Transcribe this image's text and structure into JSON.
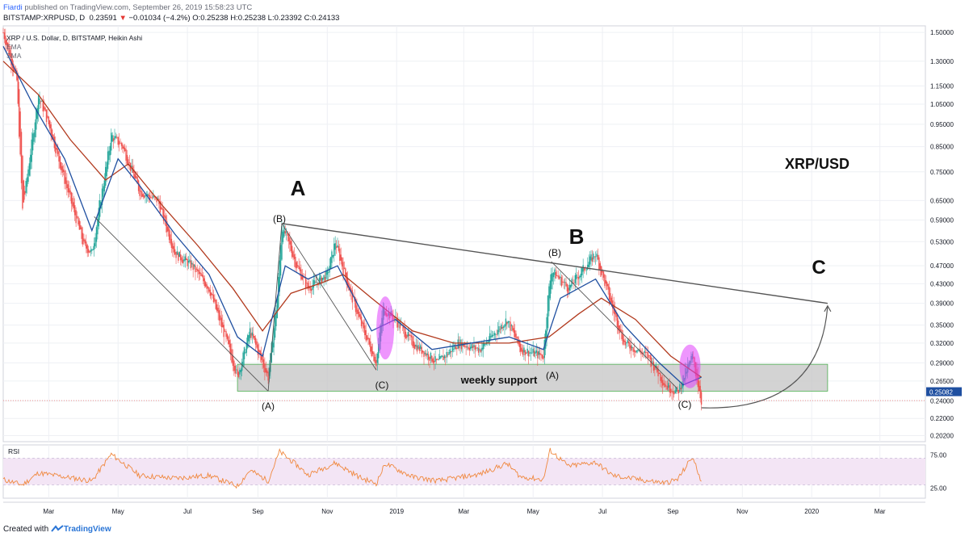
{
  "header": {
    "author": "Fiardi",
    "published_text": "published on TradingView.com, September 26, 2019 15:58:23 UTC",
    "symbol": "BITSTAMP:XRPUSD, D",
    "price": "0.23591",
    "change_arrow": "▼",
    "change": "−0.01034 (−4.2%)",
    "ohlc": "O:0.25238 H:0.25238 L:0.23392 C:0.24133"
  },
  "legend": {
    "title": "XRP / U.S. Dollar, D, BITSTAMP, Heikin Ashi",
    "line1": "EMA",
    "line2": "SMA"
  },
  "footer": {
    "created_with": "Created with",
    "brand": "TradingView"
  },
  "colors": {
    "up_candle": "#26a69a",
    "down_candle": "#ef5350",
    "ema": "#1f4fa0",
    "sma": "#b23a1e",
    "trend": "#555555",
    "support_fill": "#c8c8c8",
    "support_border": "#4caf50",
    "highlight": "#e040fb",
    "rsi_line": "#f0883e",
    "rsi_band": "#f3e5f5",
    "price_label_bg": "#1f4fa0"
  },
  "chart_data": [
    {
      "type": "candlestick",
      "title": "XRP / U.S. Dollar, D, BITSTAMP, Heikin Ashi",
      "y_scale": "log",
      "y_ticks": [
        "1.50000",
        "1.30000",
        "1.15000",
        "1.05000",
        "0.95000",
        "0.85000",
        "0.75000",
        "0.65000",
        "0.59000",
        "0.53000",
        "0.47000",
        "0.43000",
        "0.39000",
        "0.35000",
        "0.32000",
        "0.29000",
        "0.26500",
        "0.24000",
        "0.22000",
        "0.20200"
      ],
      "x_ticks": [
        "Mar",
        "May",
        "Jul",
        "Sep",
        "Nov",
        "2019",
        "Mar",
        "May",
        "Jul",
        "Sep",
        "Nov",
        "2020",
        "Mar"
      ],
      "current_price_label": "0.25082",
      "annotations": {
        "big_labels": [
          "A",
          "B",
          "C"
        ],
        "wave_labels": [
          "(B)",
          "(A)",
          "(C)",
          "(B)",
          "(A)",
          "(C)"
        ],
        "instrument_label": "XRP/USD",
        "zone_label": "weekly support"
      },
      "price_path": [
        [
          "2018-01-20",
          1.5
        ],
        [
          "2018-02-01",
          1.18
        ],
        [
          "2018-02-06",
          0.62
        ],
        [
          "2018-02-20",
          1.1
        ],
        [
          "2018-03-01",
          0.95
        ],
        [
          "2018-03-15",
          0.72
        ],
        [
          "2018-04-01",
          0.52
        ],
        [
          "2018-04-08",
          0.5
        ],
        [
          "2018-04-25",
          0.9
        ],
        [
          "2018-05-05",
          0.85
        ],
        [
          "2018-05-20",
          0.68
        ],
        [
          "2018-06-05",
          0.65
        ],
        [
          "2018-06-20",
          0.5
        ],
        [
          "2018-07-05",
          0.47
        ],
        [
          "2018-07-20",
          0.42
        ],
        [
          "2018-08-05",
          0.32
        ],
        [
          "2018-08-14",
          0.27
        ],
        [
          "2018-08-25",
          0.34
        ],
        [
          "2018-09-05",
          0.29
        ],
        [
          "2018-09-10",
          0.27
        ],
        [
          "2018-09-18",
          0.4
        ],
        [
          "2018-09-22",
          0.58
        ],
        [
          "2018-10-05",
          0.47
        ],
        [
          "2018-10-15",
          0.42
        ],
        [
          "2018-11-01",
          0.45
        ],
        [
          "2018-11-08",
          0.53
        ],
        [
          "2018-11-20",
          0.42
        ],
        [
          "2018-12-01",
          0.35
        ],
        [
          "2018-12-14",
          0.29
        ],
        [
          "2018-12-20",
          0.38
        ],
        [
          "2018-12-31",
          0.36
        ],
        [
          "2019-01-15",
          0.32
        ],
        [
          "2019-02-06",
          0.29
        ],
        [
          "2019-02-24",
          0.32
        ],
        [
          "2019-03-15",
          0.31
        ],
        [
          "2019-04-08",
          0.36
        ],
        [
          "2019-04-20",
          0.31
        ],
        [
          "2019-05-10",
          0.3
        ],
        [
          "2019-05-14",
          0.4
        ],
        [
          "2019-05-17",
          0.46
        ],
        [
          "2019-06-01",
          0.42
        ],
        [
          "2019-06-25",
          0.5
        ],
        [
          "2019-07-10",
          0.38
        ],
        [
          "2019-07-20",
          0.32
        ],
        [
          "2019-08-10",
          0.3
        ],
        [
          "2019-08-25",
          0.26
        ],
        [
          "2019-09-05",
          0.25
        ],
        [
          "2019-09-18",
          0.3
        ],
        [
          "2019-09-26",
          0.24
        ]
      ],
      "ema_path": [
        [
          "2018-01-20",
          1.4
        ],
        [
          "2018-02-15",
          1.05
        ],
        [
          "2018-03-15",
          0.8
        ],
        [
          "2018-04-08",
          0.56
        ],
        [
          "2018-05-01",
          0.8
        ],
        [
          "2018-05-20",
          0.7
        ],
        [
          "2018-06-20",
          0.55
        ],
        [
          "2018-07-20",
          0.45
        ],
        [
          "2018-08-14",
          0.33
        ],
        [
          "2018-09-05",
          0.3
        ],
        [
          "2018-09-25",
          0.47
        ],
        [
          "2018-10-15",
          0.44
        ],
        [
          "2018-11-10",
          0.47
        ],
        [
          "2018-12-10",
          0.34
        ],
        [
          "2018-12-31",
          0.36
        ],
        [
          "2019-02-01",
          0.31
        ],
        [
          "2019-04-10",
          0.33
        ],
        [
          "2019-05-10",
          0.31
        ],
        [
          "2019-05-25",
          0.4
        ],
        [
          "2019-06-25",
          0.44
        ],
        [
          "2019-07-20",
          0.35
        ],
        [
          "2019-08-20",
          0.29
        ],
        [
          "2019-09-10",
          0.26
        ],
        [
          "2019-09-26",
          0.27
        ]
      ],
      "sma_path": [
        [
          "2018-01-20",
          1.3
        ],
        [
          "2018-02-20",
          1.1
        ],
        [
          "2018-03-20",
          0.88
        ],
        [
          "2018-04-20",
          0.72
        ],
        [
          "2018-05-10",
          0.78
        ],
        [
          "2018-06-10",
          0.63
        ],
        [
          "2018-07-10",
          0.52
        ],
        [
          "2018-08-10",
          0.42
        ],
        [
          "2018-09-05",
          0.34
        ],
        [
          "2018-09-30",
          0.41
        ],
        [
          "2018-10-25",
          0.43
        ],
        [
          "2018-11-15",
          0.45
        ],
        [
          "2018-12-10",
          0.4
        ],
        [
          "2019-01-15",
          0.34
        ],
        [
          "2019-02-20",
          0.32
        ],
        [
          "2019-04-10",
          0.32
        ],
        [
          "2019-05-15",
          0.33
        ],
        [
          "2019-06-10",
          0.37
        ],
        [
          "2019-06-30",
          0.4
        ],
        [
          "2019-07-30",
          0.36
        ],
        [
          "2019-08-30",
          0.3
        ],
        [
          "2019-09-26",
          0.27
        ]
      ],
      "trendline": [
        [
          "2018-09-22",
          0.58
        ],
        [
          "2020-01-15",
          0.39
        ]
      ],
      "support_zone": {
        "from": "2018-08-14",
        "to": "2020-01-15",
        "low": 0.252,
        "high": 0.288
      },
      "projection_arrow": [
        [
          "2019-09-26",
          0.232
        ],
        [
          "2020-01-15",
          0.385
        ]
      ]
    },
    {
      "type": "line",
      "title": "RSI",
      "y_ticks": [
        "75.00",
        "25.00"
      ],
      "band": [
        30,
        70
      ],
      "values": [
        [
          "2018-01-20",
          38
        ],
        [
          "2018-02-06",
          30
        ],
        [
          "2018-02-20",
          48
        ],
        [
          "2018-03-15",
          42
        ],
        [
          "2018-04-08",
          36
        ],
        [
          "2018-04-25",
          76
        ],
        [
          "2018-05-20",
          44
        ],
        [
          "2018-06-20",
          40
        ],
        [
          "2018-07-20",
          44
        ],
        [
          "2018-08-14",
          28
        ],
        [
          "2018-08-25",
          52
        ],
        [
          "2018-09-10",
          36
        ],
        [
          "2018-09-20",
          80
        ],
        [
          "2018-10-05",
          60
        ],
        [
          "2018-10-15",
          45
        ],
        [
          "2018-11-08",
          63
        ],
        [
          "2018-12-01",
          40
        ],
        [
          "2018-12-14",
          32
        ],
        [
          "2018-12-22",
          62
        ],
        [
          "2019-01-15",
          42
        ],
        [
          "2019-02-06",
          36
        ],
        [
          "2019-03-15",
          46
        ],
        [
          "2019-04-08",
          62
        ],
        [
          "2019-04-20",
          42
        ],
        [
          "2019-05-10",
          38
        ],
        [
          "2019-05-16",
          82
        ],
        [
          "2019-06-01",
          58
        ],
        [
          "2019-06-25",
          64
        ],
        [
          "2019-07-10",
          44
        ],
        [
          "2019-08-10",
          36
        ],
        [
          "2019-08-25",
          33
        ],
        [
          "2019-09-05",
          38
        ],
        [
          "2019-09-18",
          72
        ],
        [
          "2019-09-26",
          36
        ]
      ]
    }
  ]
}
